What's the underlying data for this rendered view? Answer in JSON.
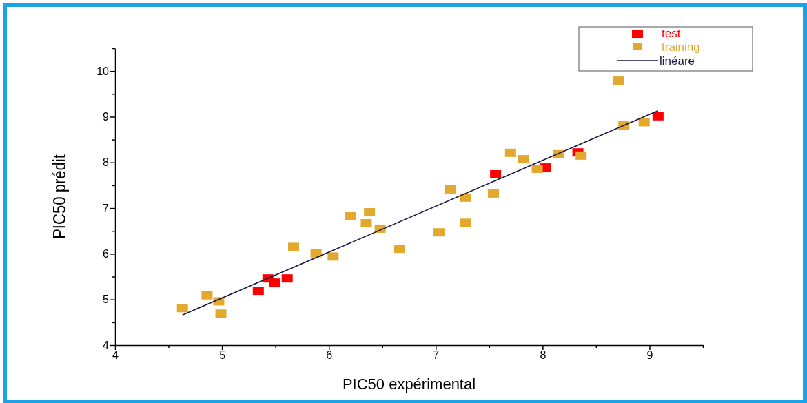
{
  "chart_data": {
    "type": "scatter",
    "xlabel": "PIC50 expérimental",
    "ylabel": "PIC50 prédit",
    "xlim": [
      4,
      9.5
    ],
    "ylim": [
      4,
      10.5
    ],
    "xticks": [
      4,
      {
        "value": 4.5,
        "label": null
      },
      5,
      {
        "value": 5.5,
        "label": null
      },
      6,
      {
        "value": 6.5,
        "label": null
      },
      7,
      {
        "value": 7.5,
        "label": null
      },
      8,
      {
        "value": 8.5,
        "label": null
      },
      9,
      {
        "value": 9.5,
        "label": null
      }
    ],
    "yticks": [
      4,
      {
        "value": 4.5,
        "label": null
      },
      5,
      {
        "value": 5.5,
        "label": null
      },
      6,
      {
        "value": 6.5,
        "label": null
      },
      7,
      {
        "value": 7.5,
        "label": null
      },
      8,
      {
        "value": 8.5,
        "label": null
      },
      9,
      {
        "value": 9.5,
        "label": null
      },
      10,
      {
        "value": 10.5,
        "label": null
      }
    ],
    "marker": "square",
    "legend": "top right",
    "grid": false,
    "series": [
      {
        "name": "test",
        "color": "#ff0000",
        "x": [
          5.34,
          5.43,
          5.49,
          5.61,
          7.56,
          8.03,
          8.33,
          9.08
        ],
        "values": [
          5.19,
          5.46,
          5.37,
          5.46,
          7.74,
          7.89,
          8.22,
          9.01
        ]
      },
      {
        "name": "training",
        "color": "#e3a92f",
        "x": [
          4.63,
          4.86,
          4.97,
          4.99,
          5.67,
          5.88,
          6.04,
          6.2,
          6.35,
          6.38,
          6.48,
          6.66,
          7.03,
          7.14,
          7.28,
          7.28,
          7.54,
          7.7,
          7.82,
          7.95,
          8.15,
          8.36,
          8.71,
          8.76,
          8.95
        ],
        "values": [
          4.81,
          5.09,
          4.96,
          4.69,
          6.15,
          6.01,
          5.94,
          6.82,
          6.67,
          6.91,
          6.55,
          6.11,
          6.47,
          7.41,
          7.23,
          6.68,
          7.32,
          8.21,
          8.07,
          7.86,
          8.18,
          8.15,
          9.79,
          8.81,
          8.88
        ]
      },
      {
        "name": "linéare",
        "type": "line",
        "color": "#14143c",
        "line_style": "solid",
        "marker": "none",
        "x": [
          4.63,
          9.08
        ],
        "values": [
          4.66,
          9.13
        ]
      }
    ]
  }
}
